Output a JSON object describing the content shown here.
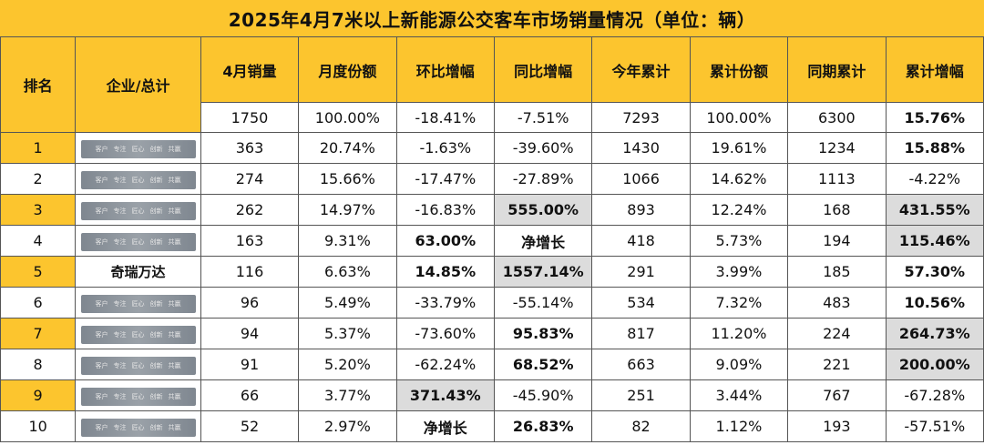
{
  "title": "2025年4月7米以上新能源公交客车市场销量情况（单位：辆）",
  "headers": {
    "rank": "排名",
    "enterprise": "企业/总计",
    "cols": [
      "4月销量",
      "月度份额",
      "环比增幅",
      "同比增幅",
      "今年累计",
      "累计份额",
      "同期累计",
      "累计增幅"
    ]
  },
  "total": {
    "cells": [
      "1750",
      "100.00%",
      "-18.41%",
      "-7.51%",
      "7293",
      "100.00%",
      "6300",
      "15.76%"
    ]
  },
  "blur_words": [
    "客户",
    "专注",
    "匠心",
    "创新",
    "共赢"
  ],
  "rows": [
    {
      "rank": "1",
      "name": "",
      "cells": [
        "363",
        "20.74%",
        "-1.63%",
        "-39.60%",
        "1430",
        "19.61%",
        "1234",
        "15.88%"
      ]
    },
    {
      "rank": "2",
      "name": "",
      "cells": [
        "274",
        "15.66%",
        "-17.47%",
        "-27.89%",
        "1066",
        "14.62%",
        "1113",
        "-4.22%"
      ]
    },
    {
      "rank": "3",
      "name": "",
      "cells": [
        "262",
        "14.97%",
        "-16.83%",
        "555.00%",
        "893",
        "12.24%",
        "168",
        "431.55%"
      ]
    },
    {
      "rank": "4",
      "name": "",
      "cells": [
        "163",
        "9.31%",
        "63.00%",
        "净增长",
        "418",
        "5.73%",
        "194",
        "115.46%"
      ]
    },
    {
      "rank": "5",
      "name": "奇瑞万达",
      "cells": [
        "116",
        "6.63%",
        "14.85%",
        "1557.14%",
        "291",
        "3.99%",
        "185",
        "57.30%"
      ]
    },
    {
      "rank": "6",
      "name": "",
      "cells": [
        "96",
        "5.49%",
        "-33.79%",
        "-55.14%",
        "534",
        "7.32%",
        "483",
        "10.56%"
      ]
    },
    {
      "rank": "7",
      "name": "",
      "cells": [
        "94",
        "5.37%",
        "-73.60%",
        "95.83%",
        "817",
        "11.20%",
        "224",
        "264.73%"
      ]
    },
    {
      "rank": "8",
      "name": "",
      "cells": [
        "91",
        "5.20%",
        "-62.24%",
        "68.52%",
        "663",
        "9.09%",
        "221",
        "200.00%"
      ]
    },
    {
      "rank": "9",
      "name": "",
      "cells": [
        "66",
        "3.77%",
        "371.43%",
        "-45.90%",
        "251",
        "3.44%",
        "767",
        "-67.28%"
      ]
    },
    {
      "rank": "10",
      "name": "",
      "cells": [
        "52",
        "2.97%",
        "净增长",
        "26.83%",
        "82",
        "1.12%",
        "193",
        "-57.51%"
      ]
    }
  ],
  "colors": {
    "header_bg": "#fcc52e",
    "highlight_bg": "#dcdcdc",
    "text": "#111111"
  }
}
